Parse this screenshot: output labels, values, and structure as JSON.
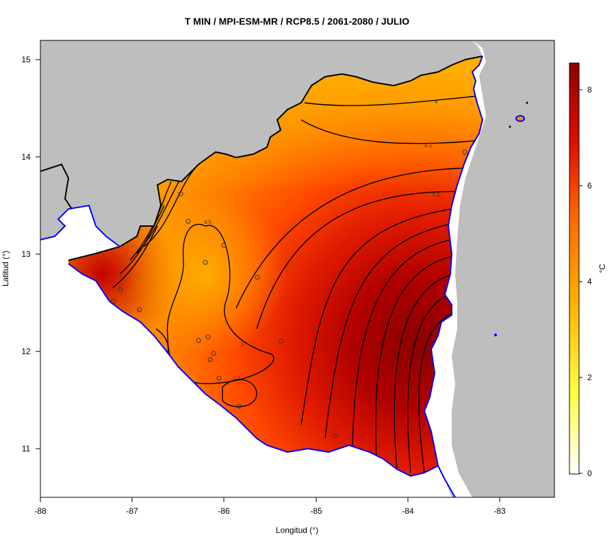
{
  "title": "T MIN / MPI-ESM-MR / RCP8.5 / 2061-2080 / JULIO",
  "axes": {
    "x_label": "Longitud (°)",
    "y_label": "Latitud (°)",
    "x_ticks": [
      "-88",
      "-87",
      "-86",
      "-85",
      "-84",
      "-83"
    ],
    "y_ticks": [
      "15",
      "14",
      "13",
      "12",
      "11"
    ]
  },
  "colorbar": {
    "unit": "°C",
    "ticks": [
      "8",
      "6",
      "4",
      "2",
      "0"
    ],
    "range": [
      -0.3,
      8.6
    ]
  },
  "contour_labels": [
    "4",
    "4.5",
    "5.5",
    "4.5",
    "5",
    "5.5"
  ],
  "colors": {
    "land_background": "#bebebe",
    "coastline": "#0000ff",
    "border": "#000000",
    "low": "#ffb000",
    "mid": "#ff6a00",
    "high": "#8b0000"
  }
}
